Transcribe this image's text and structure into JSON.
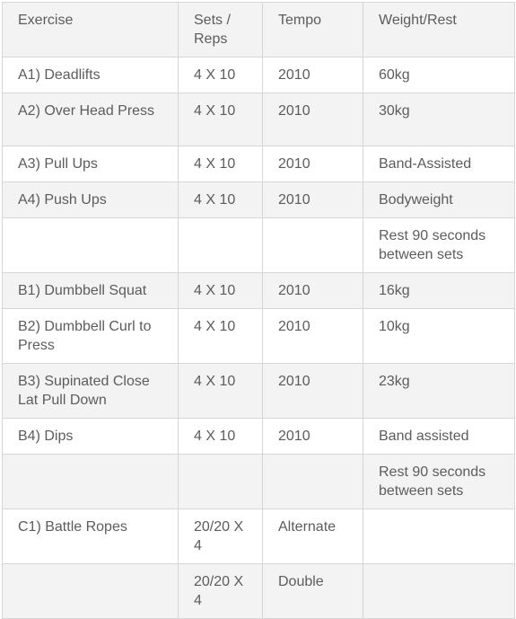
{
  "headers": {
    "exercise": "Exercise",
    "sets_reps": "Sets / Reps",
    "tempo": "Tempo",
    "weight_rest": "Weight/Rest"
  },
  "rows": [
    {
      "exercise": "A1)  Deadlifts",
      "sets_reps": "4 X 10",
      "tempo": "2010",
      "weight_rest": "60kg"
    },
    {
      "exercise": "A2) Over Head Press",
      "sets_reps": "4 X 10",
      "tempo": "2010",
      "weight_rest": "30kg"
    },
    {
      "exercise": "A3)  Pull Ups",
      "sets_reps": "4 X 10",
      "tempo": "2010",
      "weight_rest": "Band-Assisted"
    },
    {
      "exercise": "A4) Push Ups",
      "sets_reps": "4 X 10",
      "tempo": "2010",
      "weight_rest": "Bodyweight"
    },
    {
      "exercise": "",
      "sets_reps": "",
      "tempo": "",
      "weight_rest": "Rest 90 seconds between sets"
    },
    {
      "exercise": "B1) Dumbbell Squat",
      "sets_reps": "4 X 10",
      "tempo": "2010",
      "weight_rest": "16kg"
    },
    {
      "exercise": "B2) Dumbbell Curl to Press",
      "sets_reps": "4 X 10",
      "tempo": "2010",
      "weight_rest": "10kg"
    },
    {
      "exercise": "B3) Supinated Close Lat Pull Down",
      "sets_reps": "4 X 10",
      "tempo": "2010",
      "weight_rest": "23kg"
    },
    {
      "exercise": "B4) Dips",
      "sets_reps": "4 X 10",
      "tempo": "2010",
      "weight_rest": "Band assisted"
    },
    {
      "exercise": "",
      "sets_reps": "",
      "tempo": "",
      "weight_rest": "Rest 90 seconds between sets"
    },
    {
      "exercise": "C1) Battle Ropes",
      "sets_reps": "20/20 X 4",
      "tempo": "Alternate",
      "weight_rest": ""
    },
    {
      "exercise": "",
      "sets_reps": "20/20 X 4",
      "tempo": "Double",
      "weight_rest": ""
    }
  ]
}
